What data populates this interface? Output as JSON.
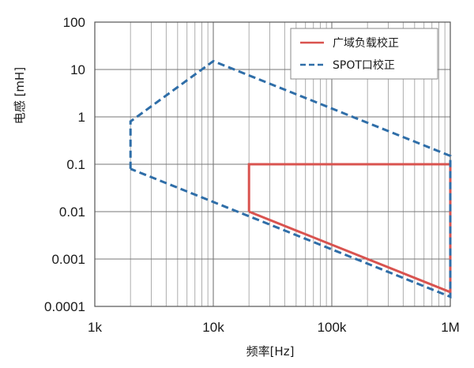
{
  "chart_data": {
    "type": "line",
    "xlabel": "频率[Hz]",
    "ylabel": "电感 [mH]",
    "x_scale": "log",
    "y_scale": "log",
    "xlim": [
      1000,
      1000000
    ],
    "ylim": [
      0.0001,
      100
    ],
    "grid": true,
    "legend_position": "top-right",
    "x_ticks": [
      {
        "value": 1000,
        "label": "1k"
      },
      {
        "value": 10000,
        "label": "10k"
      },
      {
        "value": 100000,
        "label": "100k"
      },
      {
        "value": 1000000,
        "label": "1M"
      }
    ],
    "y_ticks": [
      {
        "value": 100,
        "label": "100"
      },
      {
        "value": 10,
        "label": "10"
      },
      {
        "value": 1,
        "label": "1"
      },
      {
        "value": 0.1,
        "label": "0.1"
      },
      {
        "value": 0.01,
        "label": "0.01"
      },
      {
        "value": 0.001,
        "label": "0.001"
      },
      {
        "value": 0.0001,
        "label": "0.0001"
      }
    ],
    "series": [
      {
        "name": "广域负载校正",
        "color": "#d9534f",
        "style": "solid",
        "points": [
          {
            "x": 20000,
            "y": 0.01
          },
          {
            "x": 20000,
            "y": 0.1
          },
          {
            "x": 1000000,
            "y": 0.1
          },
          {
            "x": 1000000,
            "y": 0.0002
          },
          {
            "x": 20000,
            "y": 0.01
          }
        ]
      },
      {
        "name": "SPOT口校正",
        "color": "#2f6ea8",
        "style": "dashed",
        "points": [
          {
            "x": 2000,
            "y": 0.08
          },
          {
            "x": 2000,
            "y": 0.8
          },
          {
            "x": 10000,
            "y": 15
          },
          {
            "x": 1000000,
            "y": 0.15
          },
          {
            "x": 1000000,
            "y": 0.00016
          },
          {
            "x": 2000,
            "y": 0.08
          }
        ]
      }
    ]
  }
}
